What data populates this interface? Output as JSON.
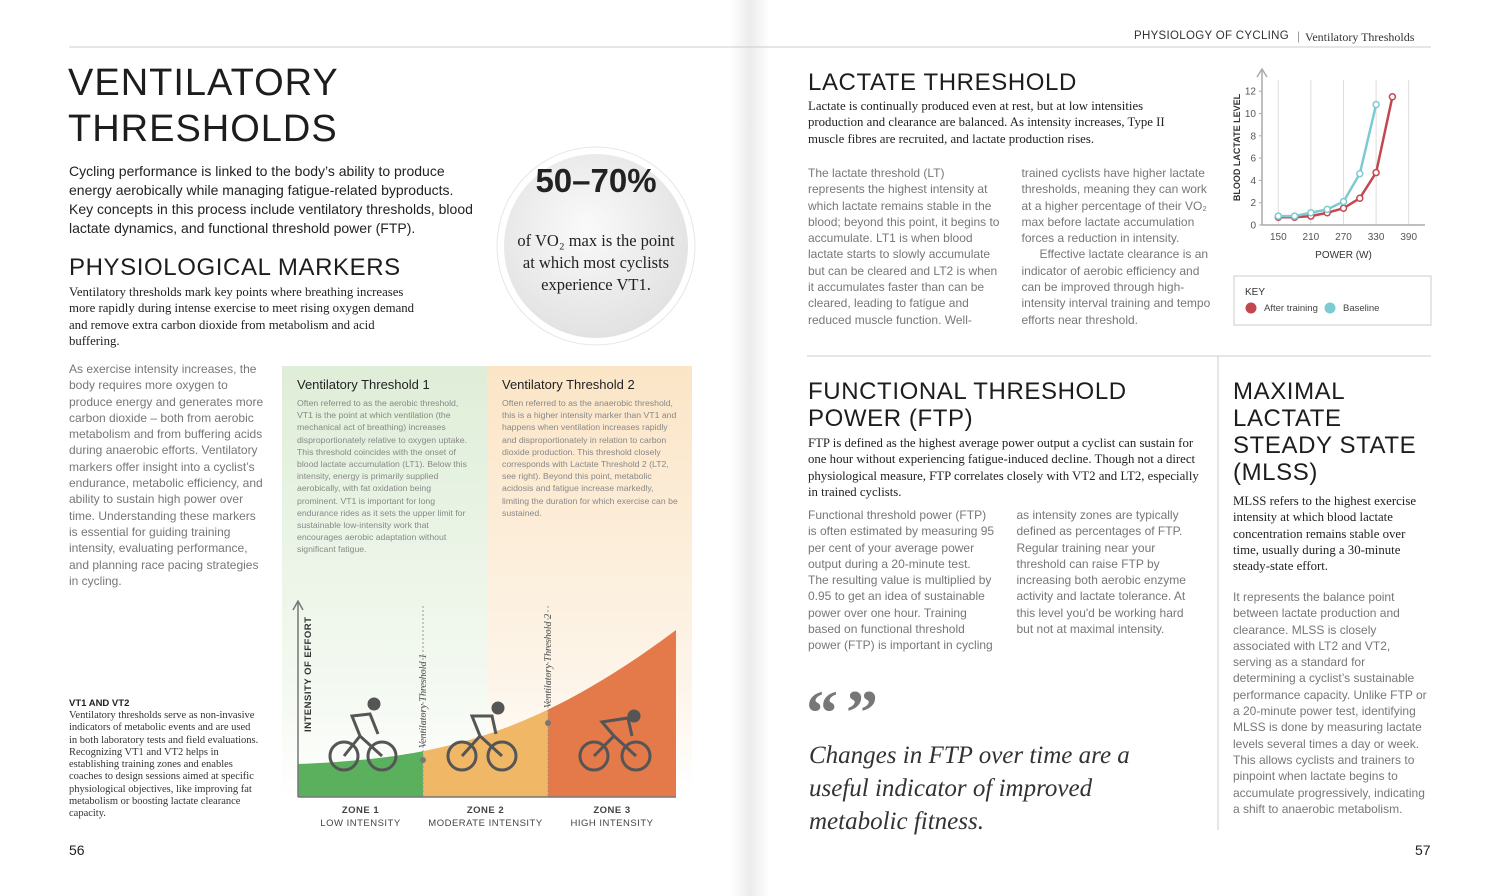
{
  "header": {
    "section": "PHYSIOLOGY OF CYCLING",
    "topic": "Ventilatory Thresholds"
  },
  "left_page": {
    "title": "VENTILATORY THRESHOLDS",
    "intro": "Cycling performance is linked to the body’s ability to produce energy aerobically while managing fatigue-related byproducts. Key concepts in this process include ventilatory thresholds, blood lactate dynamics, and functional threshold power (FTP).",
    "callout": {
      "stat": "50–70%",
      "text": "of VO₂ max is the point at which most cyclists experience VT1."
    },
    "markers": {
      "title": "PHYSIOLOGICAL MARKERS",
      "lead": "Ventilatory thresholds mark key points where breathing increases more rapidly during intense exercise to meet rising oxygen demand and remove extra carbon dioxide from metabolism and acid buffering.",
      "body": "As exercise intensity increases, the body requires more oxygen to produce energy and generates more carbon dioxide – both from aerobic metabolism and from buffering acids during anaerobic efforts. Ventilatory markers offer insight into a cyclist’s endurance, metabolic efficiency, and ability to sustain high power over time. Understanding these markers is essential for guiding training intensity, evaluating performance, and planning race pacing strategies in cycling."
    },
    "diagram": {
      "vt1": {
        "title": "Ventilatory Threshold 1",
        "text": "Often referred to as the aerobic threshold, VT1 is the point at which ventilation (the mechanical act of breathing) increases disproportionately relative to oxygen uptake. This threshold coincides with the onset of blood lactate accumulation (LT1). Below this intensity, energy is primarily supplied aerobically, with fat oxidation being prominent. VT1 is important for long endurance rides as it sets the upper limit for sustainable low-intensity work that encourages aerobic adaptation without significant fatigue."
      },
      "vt2": {
        "title": "Ventilatory Threshold 2",
        "text": "Often referred to as the anaerobic threshold, this is a higher intensity marker than VT1 and happens when ventilation increases rapidly and disproportionately in relation to carbon dioxide production. This threshold closely corresponds with Lactate Threshold 2 (LT2, see right). Beyond this point, metabolic acidosis and fatigue increase markedly, limiting the duration for which exercise can be sustained."
      },
      "y_label": "INTENSITY OF EFFORT",
      "threshold_labels": [
        "Ventilatory Threshold 1",
        "Ventilatory Threshold 2"
      ],
      "zones": [
        {
          "name": "ZONE 1",
          "label": "LOW INTENSITY"
        },
        {
          "name": "ZONE 2",
          "label": "MODERATE INTENSITY"
        },
        {
          "name": "ZONE 3",
          "label": "HIGH INTENSITY"
        }
      ]
    },
    "sidebar": {
      "title": "VT1 AND VT2",
      "text": "Ventilatory thresholds serve as non-invasive indicators of metabolic events and are used in both laboratory tests and field evaluations. Recognizing VT1 and VT2 helps in establishing training zones and enables coaches to design sessions aimed at specific physiological objectives, like improving fat metabolism or boosting lactate clearance capacity."
    },
    "page_number": "56"
  },
  "right_page": {
    "lactate": {
      "title": "LACTATE THRESHOLD",
      "lead": "Lactate is continually produced even at rest, but at low intensities production and clearance are balanced. As intensity increases, Type II muscle fibres are recruited, and lactate production rises.",
      "body": [
        "The lactate threshold (LT) represents the highest intensity at which lactate remains stable in the blood; beyond this point, it begins to accumulate. LT1 is when blood lactate starts to slowly accumulate but can be cleared and LT2 is when it accumulates faster than can be cleared, leading to fatigue and reduced muscle function. Well-trained cyclists have higher lactate thresholds, meaning they can work at a higher percentage of their VO₂ max before lactate accumulation forces a reduction in intensity.",
        "Effective lactate clearance is an indicator of aerobic efficiency and can be improved through high-intensity interval training and tempo efforts near threshold."
      ]
    },
    "ftp": {
      "title": "FUNCTIONAL THRESHOLD POWER (FTP)",
      "lead": "FTP is defined as the highest average power output a cyclist can sustain for one hour without experiencing fatigue-induced decline. Though not a direct physiological measure, FTP correlates closely with VT2 and LT2, especially in trained cyclists.",
      "body": "Functional threshold power (FTP) is often estimated by measuring 95 per cent of your average power output during a 20-minute test. The resulting value is multiplied by 0.95 to get an idea of sustainable power over one hour. Training based on functional threshold power (FTP) is important in cycling as intensity zones are typically defined as percentages of FTP. Regular training near your threshold can raise FTP by increasing both aerobic enzyme activity and lactate tolerance. At this level you'd be working hard but not at maximal intensity.",
      "quote_marks": "“ ”",
      "quote": "Changes in FTP over time are a useful indicator of improved metabolic fitness."
    },
    "mlss": {
      "title": "MAXIMAL LACTATE STEADY STATE (MLSS)",
      "lead": "MLSS refers to the highest exercise intensity at which blood lactate concentration remains stable over time, usually during a 30-minute steady-state effort.",
      "body": "It represents the balance point between lactate production and clearance. MLSS is closely associated with LT2 and VT2, serving as a standard for determining a cyclist’s sustainable performance capacity. Unlike FTP or a 20-minute power test, identifying MLSS is done by measuring lactate levels several times a day or week. This allows cyclists and trainers to pinpoint when lactate begins to accumulate progressively, indicating a shift to anaerobic metabolism."
    },
    "page_number": "57"
  },
  "chart_data": {
    "type": "line",
    "x_label": "POWER (W)",
    "y_label": "BLOOD LACTATE LEVEL",
    "x": [
      150,
      180,
      210,
      240,
      270,
      300,
      330,
      360
    ],
    "series": [
      {
        "name": "After training",
        "color": "#c4464f",
        "values": [
          0.7,
          0.7,
          0.8,
          1.1,
          1.5,
          2.4,
          4.7,
          11.5
        ]
      },
      {
        "name": "Baseline",
        "color": "#7ccbd2",
        "values": [
          0.8,
          0.8,
          1.1,
          1.4,
          2.1,
          4.6,
          10.8,
          null
        ]
      }
    ],
    "xlim": [
      120,
      420
    ],
    "xticks": [
      150,
      210,
      270,
      330,
      390
    ],
    "ylim": [
      0,
      13
    ],
    "yticks": [
      0,
      2,
      4,
      6,
      8,
      10,
      12
    ],
    "grid": true,
    "legend_title": "KEY"
  }
}
